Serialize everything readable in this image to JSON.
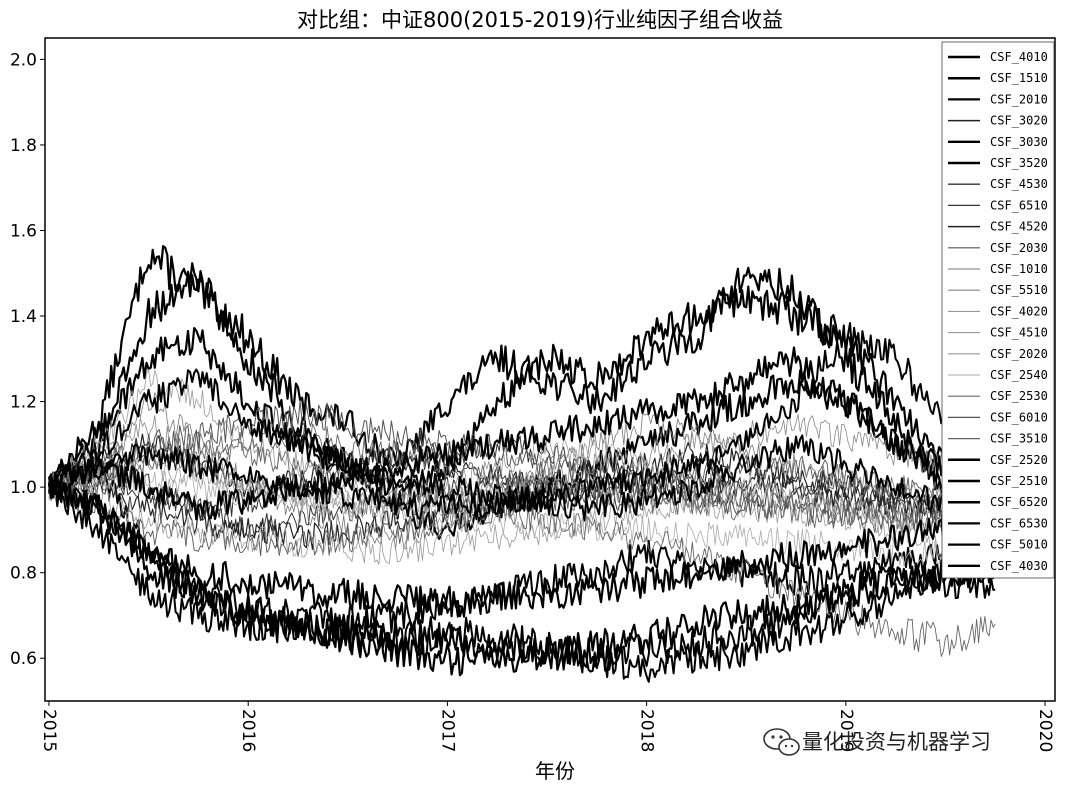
{
  "chart_data": {
    "type": "line",
    "title": "对比组：中证800(2015-2019)行业纯因子组合收益",
    "xlabel": "年份",
    "ylabel": "",
    "xlim": [
      2014.98,
      2020.05
    ],
    "ylim": [
      0.5,
      2.05
    ],
    "x_ticks": [
      2015,
      2016,
      2017,
      2018,
      2019,
      2020
    ],
    "x_tick_labels": [
      "2015",
      "2016",
      "2017",
      "2018",
      "2019",
      "2020"
    ],
    "y_ticks": [
      0.6,
      0.8,
      1.0,
      1.2,
      1.4,
      1.6,
      1.8,
      2.0
    ],
    "y_tick_labels": [
      "0.6",
      "0.8",
      "1.0",
      "1.2",
      "1.4",
      "1.6",
      "1.8",
      "2.0"
    ],
    "legend_position": "top-right",
    "x": [
      2015.0,
      2015.25,
      2015.5,
      2015.75,
      2016.0,
      2016.25,
      2016.5,
      2016.75,
      2017.0,
      2017.25,
      2017.5,
      2017.75,
      2018.0,
      2018.25,
      2018.5,
      2018.75,
      2019.0,
      2019.25,
      2019.5,
      2019.75
    ],
    "series": [
      {
        "name": "CSF_4010",
        "values": [
          1.0,
          1.15,
          1.55,
          1.45,
          1.35,
          1.2,
          1.15,
          1.05,
          1.2,
          1.3,
          1.25,
          1.2,
          1.3,
          1.35,
          1.5,
          1.45,
          1.3,
          1.15,
          1.0,
          0.97
        ]
      },
      {
        "name": "CSF_1510",
        "values": [
          1.0,
          1.1,
          1.4,
          1.5,
          1.3,
          1.15,
          1.05,
          1.0,
          1.05,
          1.2,
          1.3,
          1.25,
          1.35,
          1.4,
          1.45,
          1.4,
          1.35,
          1.2,
          1.05,
          1.0
        ]
      },
      {
        "name": "CSF_2010",
        "values": [
          1.0,
          1.05,
          0.85,
          0.75,
          0.72,
          0.7,
          0.68,
          0.7,
          0.72,
          0.75,
          0.78,
          0.8,
          0.85,
          0.82,
          0.8,
          0.78,
          0.8,
          0.82,
          0.85,
          0.86
        ]
      },
      {
        "name": "CSF_3020",
        "values": [
          1.0,
          1.05,
          1.1,
          1.05,
          1.0,
          1.02,
          1.05,
          1.08,
          1.05,
          1.02,
          1.0,
          1.02,
          1.05,
          1.08,
          1.05,
          1.02,
          1.0,
          0.98,
          0.96,
          0.95
        ]
      },
      {
        "name": "CSF_3030",
        "values": [
          1.0,
          0.9,
          0.75,
          0.7,
          0.68,
          0.67,
          0.66,
          0.65,
          0.66,
          0.65,
          0.62,
          0.61,
          0.62,
          0.64,
          0.66,
          0.7,
          0.75,
          0.8,
          0.78,
          0.76
        ]
      },
      {
        "name": "CSF_3520",
        "values": [
          1.0,
          1.12,
          1.3,
          1.35,
          1.2,
          1.1,
          1.05,
          0.95,
          0.9,
          0.95,
          1.0,
          1.05,
          1.1,
          1.15,
          1.2,
          1.25,
          1.2,
          1.1,
          1.0,
          0.98
        ]
      },
      {
        "name": "CSF_4530",
        "values": [
          1.0,
          1.05,
          1.0,
          0.95,
          0.9,
          0.92,
          0.95,
          0.98,
          1.0,
          1.02,
          1.0,
          0.98,
          0.96,
          0.98,
          1.0,
          1.02,
          1.0,
          0.97,
          0.95,
          0.94
        ]
      },
      {
        "name": "CSF_6510",
        "values": [
          1.0,
          1.02,
          0.98,
          0.95,
          0.97,
          1.0,
          1.03,
          1.05,
          1.08,
          1.1,
          1.08,
          1.05,
          1.02,
          1.0,
          0.98,
          0.97,
          0.96,
          0.95,
          0.94,
          0.93
        ]
      },
      {
        "name": "CSF_4520",
        "values": [
          1.0,
          1.0,
          0.95,
          0.92,
          0.9,
          0.88,
          0.9,
          0.92,
          0.95,
          0.97,
          0.98,
          1.0,
          1.02,
          1.03,
          1.02,
          1.0,
          0.98,
          0.96,
          0.95,
          0.95
        ]
      },
      {
        "name": "CSF_2030",
        "values": [
          1.0,
          0.95,
          0.9,
          0.88,
          0.87,
          0.86,
          0.88,
          0.9,
          0.92,
          0.95,
          0.97,
          0.98,
          1.0,
          1.02,
          1.05,
          1.05,
          1.02,
          1.0,
          0.98,
          0.97
        ]
      },
      {
        "name": "CSF_1010",
        "values": [
          1.0,
          1.05,
          1.2,
          1.1,
          1.0,
          0.95,
          0.9,
          0.88,
          0.92,
          0.98,
          1.05,
          1.1,
          1.15,
          1.12,
          1.08,
          1.05,
          1.02,
          1.0,
          0.98,
          0.97
        ]
      },
      {
        "name": "CSF_5510",
        "values": [
          1.0,
          1.08,
          1.15,
          1.05,
          1.0,
          0.98,
          0.97,
          0.96,
          0.98,
          1.0,
          1.02,
          1.05,
          1.08,
          1.1,
          1.12,
          1.15,
          1.12,
          1.08,
          1.05,
          1.03
        ]
      },
      {
        "name": "CSF_4020",
        "values": [
          1.0,
          1.1,
          1.25,
          1.2,
          1.1,
          1.05,
          1.0,
          0.98,
          1.0,
          1.05,
          1.1,
          1.08,
          1.05,
          1.02,
          1.0,
          0.98,
          0.96,
          0.95,
          0.94,
          0.93
        ]
      },
      {
        "name": "CSF_4510",
        "values": [
          1.0,
          0.98,
          0.92,
          0.9,
          0.88,
          0.87,
          0.86,
          0.85,
          0.86,
          0.88,
          0.9,
          0.92,
          0.95,
          0.97,
          0.98,
          0.97,
          0.95,
          0.9,
          0.85,
          0.82
        ]
      },
      {
        "name": "CSF_2020",
        "values": [
          1.0,
          1.02,
          1.05,
          1.03,
          1.0,
          0.98,
          0.96,
          0.95,
          0.96,
          0.98,
          1.0,
          1.0,
          0.98,
          0.96,
          0.95,
          0.94,
          0.93,
          0.92,
          0.92,
          0.91
        ]
      },
      {
        "name": "CSF_2540",
        "values": [
          1.0,
          1.0,
          1.02,
          1.0,
          0.98,
          0.97,
          0.95,
          0.94,
          0.93,
          0.92,
          0.91,
          0.9,
          0.9,
          0.89,
          0.88,
          0.87,
          0.86,
          0.85,
          0.85,
          0.84
        ]
      },
      {
        "name": "CSF_2530",
        "values": [
          1.0,
          1.03,
          1.08,
          1.1,
          1.08,
          1.05,
          1.03,
          1.0,
          0.98,
          0.95,
          0.92,
          0.9,
          0.88,
          0.85,
          0.8,
          0.75,
          0.7,
          0.66,
          0.64,
          0.68
        ]
      },
      {
        "name": "CSF_6010",
        "values": [
          1.0,
          1.05,
          1.1,
          1.12,
          1.15,
          1.18,
          1.15,
          1.12,
          1.1,
          1.08,
          1.05,
          1.02,
          1.0,
          0.98,
          0.96,
          0.95,
          0.94,
          0.93,
          0.92,
          0.92
        ]
      },
      {
        "name": "CSF_3510",
        "values": [
          1.0,
          1.02,
          1.05,
          1.08,
          1.1,
          1.12,
          1.1,
          1.08,
          1.05,
          1.02,
          1.0,
          0.98,
          0.97,
          0.96,
          0.95,
          0.94,
          0.93,
          0.92,
          0.92,
          0.91
        ]
      },
      {
        "name": "CSF_2520",
        "values": [
          1.0,
          0.95,
          0.85,
          0.8,
          0.78,
          0.76,
          0.75,
          0.74,
          0.73,
          0.74,
          0.75,
          0.76,
          0.78,
          0.8,
          0.82,
          0.84,
          0.86,
          0.88,
          0.9,
          0.92
        ]
      },
      {
        "name": "CSF_2510",
        "values": [
          1.0,
          0.95,
          0.8,
          0.75,
          0.7,
          0.68,
          0.65,
          0.62,
          0.6,
          0.6,
          0.61,
          0.63,
          0.65,
          0.68,
          0.7,
          0.72,
          0.75,
          0.78,
          0.8,
          0.8
        ]
      },
      {
        "name": "CSF_6520",
        "values": [
          1.0,
          1.05,
          1.0,
          0.95,
          0.97,
          1.0,
          1.02,
          1.05,
          1.08,
          1.1,
          1.12,
          1.15,
          1.18,
          1.2,
          1.25,
          1.3,
          1.2,
          1.1,
          1.05,
          1.0
        ]
      },
      {
        "name": "CSF_6530",
        "values": [
          1.0,
          1.08,
          1.2,
          1.25,
          1.15,
          1.1,
          1.05,
          1.02,
          1.0,
          0.98,
          0.96,
          0.95,
          0.97,
          1.0,
          1.05,
          1.1,
          1.05,
          1.0,
          0.96,
          0.95
        ]
      },
      {
        "name": "CSF_5010",
        "values": [
          1.0,
          1.05,
          1.08,
          1.05,
          1.02,
          1.0,
          0.98,
          0.96,
          0.95,
          0.96,
          0.98,
          1.0,
          1.02,
          1.05,
          1.1,
          1.2,
          1.35,
          1.3,
          1.15,
          1.05
        ]
      },
      {
        "name": "CSF_4030",
        "values": [
          1.0,
          0.95,
          0.85,
          0.75,
          0.7,
          0.68,
          0.66,
          0.65,
          0.64,
          0.63,
          0.62,
          0.6,
          0.58,
          0.6,
          0.62,
          0.65,
          0.7,
          0.75,
          0.8,
          0.82
        ]
      }
    ]
  },
  "watermark": {
    "text": "量化投资与机器学习"
  }
}
